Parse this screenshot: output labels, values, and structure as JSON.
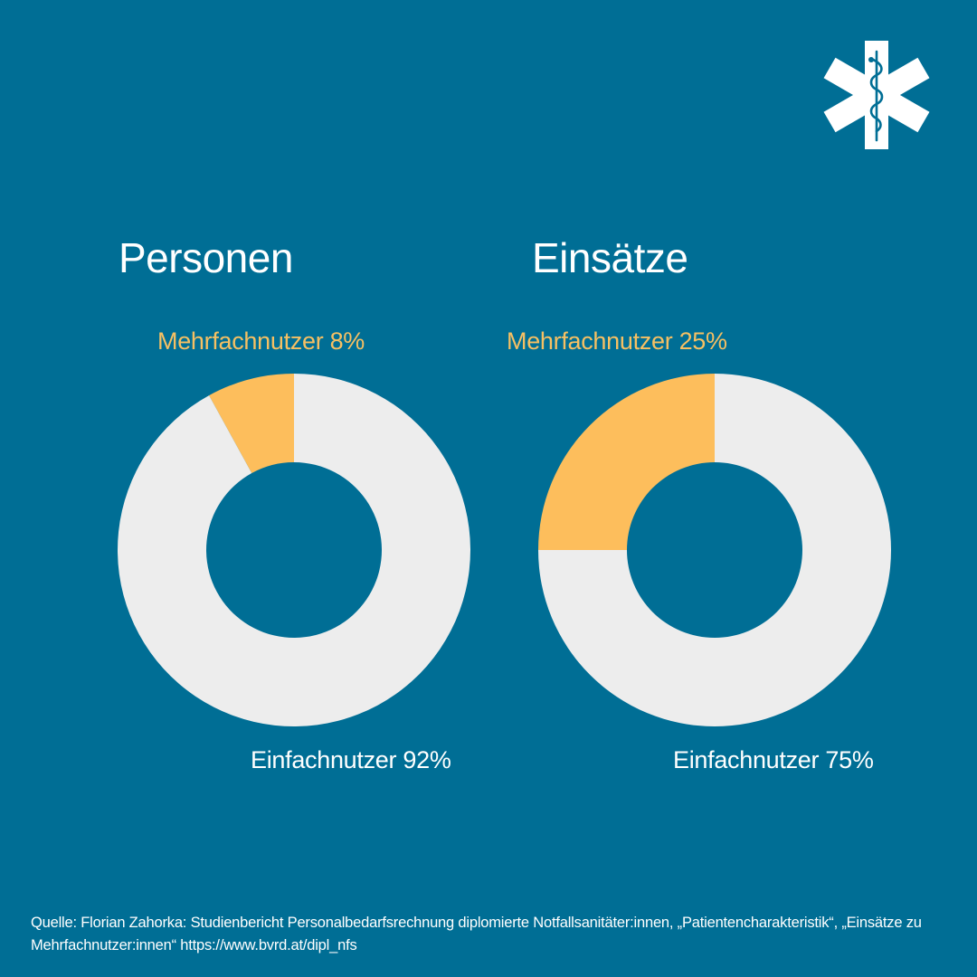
{
  "colors": {
    "background": "#006e95",
    "minor_slice": "#fdbe5c",
    "major_slice": "#ededed",
    "minor_label": "#f6c063",
    "major_label": "#ffffff",
    "text": "#ffffff"
  },
  "logo": {
    "icon": "star-of-life-icon"
  },
  "chart_data": [
    {
      "type": "pie",
      "title": "Personen",
      "slices": [
        {
          "label": "Mehrfachnutzer",
          "value": 8,
          "color": "#fdbe5c",
          "text": "Mehrfachnutzer 8%"
        },
        {
          "label": "Einfachnutzer",
          "value": 92,
          "color": "#ededed",
          "text": "Einfachnutzer 92%"
        }
      ]
    },
    {
      "type": "pie",
      "title": "Einsätze",
      "slices": [
        {
          "label": "Mehrfachnutzer",
          "value": 25,
          "color": "#fdbe5c",
          "text": "Mehrfachnutzer 25%"
        },
        {
          "label": "Einfachnutzer",
          "value": 75,
          "color": "#ededed",
          "text": "Einfachnutzer 75%"
        }
      ]
    }
  ],
  "source": "Quelle: Florian Zahorka: Studienbericht Personalbedarfsrechnung diplomierte Notfallsanitäter:innen, „Patientencharakteristik“, „Einsätze zu Mehrfachnutzer:innen“ https://www.bvrd.at/dipl_nfs"
}
